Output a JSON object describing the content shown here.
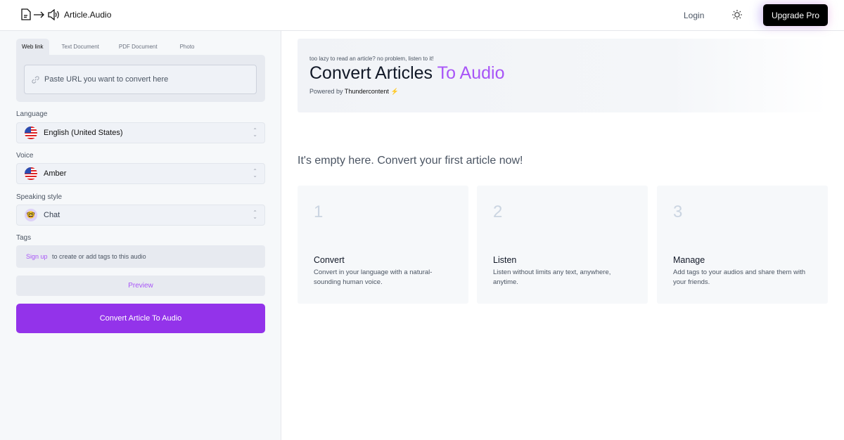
{
  "header": {
    "brand": "Article.Audio",
    "login": "Login",
    "upgrade": "Upgrade Pro"
  },
  "sidebar": {
    "tabs": [
      "Web link",
      "Text Document",
      "PDF Document",
      "Photo"
    ],
    "url_placeholder": "Paste URL you want to convert here",
    "language": {
      "label": "Language",
      "value": "English (United States)"
    },
    "voice": {
      "label": "Voice",
      "value": "Amber"
    },
    "style": {
      "label": "Speaking style",
      "value": "Chat",
      "emoji": "🤓"
    },
    "tags": {
      "label": "Tags",
      "signup": "Sign up",
      "text": "to create or add tags to this audio"
    },
    "preview": "Preview",
    "convert": "Convert Article To Audio"
  },
  "hero": {
    "sub": "too lazy to read an article? no problem, listen to it!",
    "title": "Convert Articles",
    "title_accent": "To Audio",
    "powered": "Powered by",
    "powered_brand": "Thundercontent",
    "bolt": "⚡"
  },
  "empty": "It's empty here. Convert your first article now!",
  "cards": [
    {
      "n": "1",
      "title": "Convert",
      "desc": "Convert in your language with a natural-sounding human voice."
    },
    {
      "n": "2",
      "title": "Listen",
      "desc": "Listen without limits any text, anywhere, anytime."
    },
    {
      "n": "3",
      "title": "Manage",
      "desc": "Add tags to your audios and share them with your friends."
    }
  ],
  "colors": {
    "accent": "#9333ea",
    "accent_text": "#a855f7"
  }
}
